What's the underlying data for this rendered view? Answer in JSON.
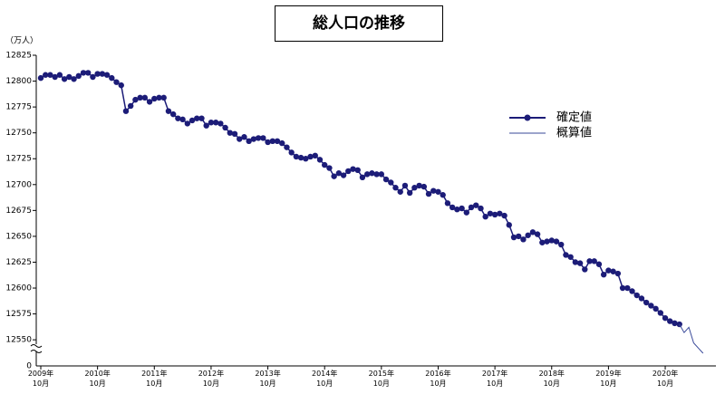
{
  "chart_data": {
    "type": "line",
    "title": "総人口の推移",
    "y_unit_label": "（万人）",
    "categories": [
      "2009年\n10月",
      null,
      null,
      null,
      null,
      null,
      null,
      null,
      null,
      null,
      null,
      null,
      "2010年\n10月",
      null,
      null,
      null,
      null,
      null,
      null,
      null,
      null,
      null,
      null,
      null,
      "2011年\n10月",
      null,
      null,
      null,
      null,
      null,
      null,
      null,
      null,
      null,
      null,
      null,
      "2012年\n10月",
      null,
      null,
      null,
      null,
      null,
      null,
      null,
      null,
      null,
      null,
      null,
      "2013年\n10月",
      null,
      null,
      null,
      null,
      null,
      null,
      null,
      null,
      null,
      null,
      null,
      "2014年\n10月",
      null,
      null,
      null,
      null,
      null,
      null,
      null,
      null,
      null,
      null,
      null,
      "2015年\n10月",
      null,
      null,
      null,
      null,
      null,
      null,
      null,
      null,
      null,
      null,
      null,
      "2016年\n10月",
      null,
      null,
      null,
      null,
      null,
      null,
      null,
      null,
      null,
      null,
      null,
      "2017年\n10月",
      null,
      null,
      null,
      null,
      null,
      null,
      null,
      null,
      null,
      null,
      null,
      "2018年\n10月",
      null,
      null,
      null,
      null,
      null,
      null,
      null,
      null,
      null,
      null,
      null,
      "2019年\n10月",
      null,
      null,
      null,
      null,
      null,
      null,
      null,
      null,
      null,
      null,
      null,
      "2020年\n10月",
      null,
      null,
      null,
      null,
      null,
      null,
      null,
      null
    ],
    "series": [
      {
        "name": "確定値",
        "color": "#1c1c78",
        "markers": true,
        "values": [
          12803,
          12806,
          12806,
          12804,
          12806,
          12802,
          12804,
          12802,
          12805,
          12808,
          12808,
          12804,
          12807,
          12807,
          12806,
          12803,
          12799,
          12796,
          12771,
          12776,
          12782,
          12784,
          12784,
          12780,
          12783,
          12784,
          12784,
          12771,
          12768,
          12764,
          12763,
          12759,
          12762,
          12764,
          12764,
          12757,
          12760,
          12760,
          12759,
          12755,
          12750,
          12749,
          12744,
          12746,
          12742,
          12744,
          12745,
          12745,
          12741,
          12742,
          12742,
          12740,
          12736,
          12731,
          12727,
          12726,
          12725,
          12727,
          12728,
          12724,
          12719,
          12716,
          12708,
          12711,
          12709,
          12713,
          12715,
          12714,
          12707,
          12710,
          12711,
          12710,
          12710,
          12705,
          12702,
          12697,
          12693,
          12699,
          12692,
          12697,
          12699,
          12698,
          12691,
          12694,
          12693,
          12690,
          12682,
          12678,
          12676,
          12677,
          12673,
          12678,
          12680,
          12677,
          12669,
          12672,
          12671,
          12672,
          12670,
          12661,
          12649,
          12650,
          12647,
          12651,
          12654,
          12652,
          12644,
          12645,
          12646,
          12645,
          12642,
          12632,
          12630,
          12625,
          12624,
          12618,
          12626,
          12626,
          12623,
          12613,
          12617,
          12616,
          12614,
          12600,
          12600,
          12597,
          12593,
          12590,
          12586,
          12583,
          12580,
          12576,
          12571,
          12568,
          12566,
          12565,
          null,
          null,
          null,
          null,
          null
        ]
      },
      {
        "name": "概算値",
        "color": "#3a4a9a",
        "markers": false,
        "values": [
          null,
          null,
          null,
          null,
          null,
          null,
          null,
          null,
          null,
          null,
          null,
          null,
          null,
          null,
          null,
          null,
          null,
          null,
          null,
          null,
          null,
          null,
          null,
          null,
          null,
          null,
          null,
          null,
          null,
          null,
          null,
          null,
          null,
          null,
          null,
          null,
          null,
          null,
          null,
          null,
          null,
          null,
          null,
          null,
          null,
          null,
          null,
          null,
          null,
          null,
          null,
          null,
          null,
          null,
          null,
          null,
          null,
          null,
          null,
          null,
          null,
          null,
          null,
          null,
          null,
          null,
          null,
          null,
          null,
          null,
          null,
          null,
          null,
          null,
          null,
          null,
          null,
          null,
          null,
          null,
          null,
          null,
          null,
          null,
          null,
          null,
          null,
          null,
          null,
          null,
          null,
          null,
          null,
          null,
          null,
          null,
          null,
          null,
          null,
          null,
          null,
          null,
          null,
          null,
          null,
          null,
          null,
          null,
          null,
          null,
          null,
          null,
          null,
          null,
          null,
          null,
          null,
          null,
          null,
          null,
          null,
          null,
          null,
          null,
          null,
          null,
          null,
          null,
          null,
          null,
          null,
          null,
          null,
          null,
          null,
          12565,
          12557,
          12562,
          12547,
          12542,
          12537
        ]
      }
    ],
    "ylim": [
      12530,
      12825
    ],
    "yticks": [
      12550,
      12575,
      12600,
      12625,
      12650,
      12675,
      12700,
      12725,
      12750,
      12775,
      12800,
      12825
    ],
    "y_break_tick": 0,
    "grid": false
  }
}
